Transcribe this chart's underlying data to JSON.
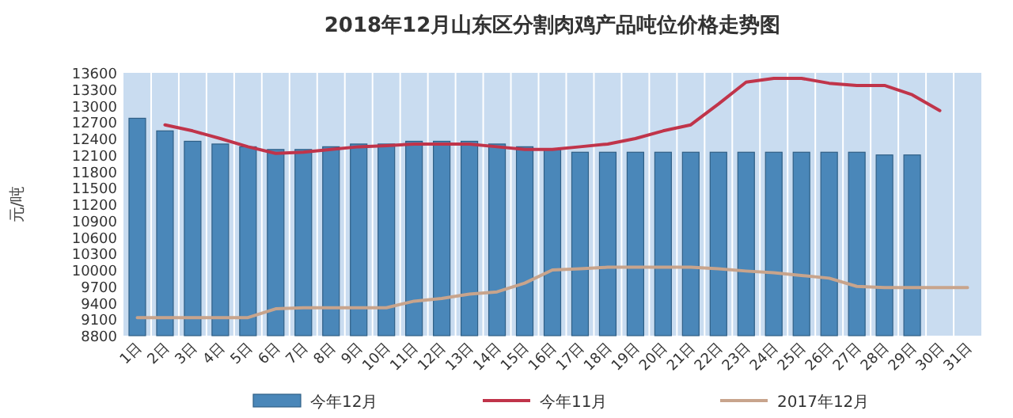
{
  "chart_data": {
    "type": "bar",
    "title": "2018年12月山东区分割肉鸡产品吨位价格走势图",
    "ylabel": "元/吨",
    "categories": [
      "1日",
      "2日",
      "3日",
      "4日",
      "5日",
      "6日",
      "7日",
      "8日",
      "9日",
      "10日",
      "11日",
      "12日",
      "13日",
      "14日",
      "15日",
      "16日",
      "17日",
      "18日",
      "19日",
      "20日",
      "21日",
      "22日",
      "23日",
      "24日",
      "25日",
      "26日",
      "27日",
      "28日",
      "29日",
      "30日",
      "31日"
    ],
    "ylim": [
      8800,
      13600
    ],
    "yticks": [
      8800,
      9100,
      9400,
      9700,
      10000,
      10300,
      10600,
      10900,
      11200,
      11500,
      11800,
      12100,
      12400,
      12700,
      13000,
      13300,
      13600
    ],
    "grid": "x",
    "legend": "bottom",
    "marker": "none",
    "series": [
      {
        "name": "今年12月",
        "color": "#4a87b9",
        "values": [
          12770,
          12540,
          12350,
          12300,
          12250,
          12200,
          12200,
          12250,
          12300,
          12300,
          12350,
          12350,
          12350,
          12300,
          12250,
          12200,
          12150,
          12150,
          12150,
          12150,
          12150,
          12150,
          12150,
          12150,
          12150,
          12150,
          12150,
          12100,
          12100,
          null,
          null
        ]
      },
      {
        "name": "今年11月",
        "type": "line",
        "color": "#c0344a",
        "values": [
          null,
          12650,
          12540,
          12400,
          12250,
          12130,
          12150,
          12200,
          12250,
          12270,
          12300,
          12300,
          12300,
          12250,
          12200,
          12200,
          12250,
          12300,
          12400,
          12540,
          12650,
          13030,
          13430,
          13500,
          13500,
          13410,
          13370,
          13370,
          13200,
          12910,
          null
        ]
      },
      {
        "name": "2017年12月",
        "type": "line",
        "color": "#c8a48c",
        "values": [
          9130,
          9130,
          9130,
          9130,
          9130,
          9290,
          9310,
          9310,
          9310,
          9310,
          9430,
          9480,
          9560,
          9600,
          9760,
          10000,
          10020,
          10050,
          10050,
          10050,
          10050,
          10020,
          9980,
          9950,
          9900,
          9850,
          9700,
          9680,
          9680,
          9680,
          9680
        ]
      }
    ]
  }
}
